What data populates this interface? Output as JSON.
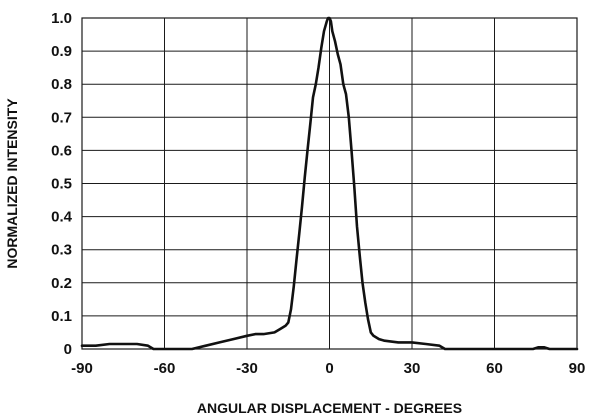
{
  "chart_data": {
    "type": "line",
    "title": "",
    "xlabel": "ANGULAR DISPLACEMENT - DEGREES",
    "ylabel": "NORMALIZED INTENSITY",
    "xlim": [
      -90,
      90
    ],
    "ylim": [
      0,
      1.0
    ],
    "grid": true,
    "x_ticks": [
      -90,
      -60,
      -30,
      0,
      30,
      60,
      90
    ],
    "y_ticks": [
      0,
      0.1,
      0.2,
      0.3,
      0.4,
      0.5,
      0.6,
      0.7,
      0.8,
      0.9,
      1.0
    ],
    "x_tick_labels": [
      "-90",
      "-60",
      "-30",
      "0",
      "30",
      "60",
      "90"
    ],
    "y_tick_labels": [
      "0",
      "0.1",
      "0.2",
      "0.3",
      "0.4",
      "0.5",
      "0.6",
      "0.7",
      "0.8",
      "0.9",
      "1.0"
    ],
    "series": [
      {
        "x": [
          -90,
          -85,
          -80,
          -75,
          -70,
          -66,
          -64,
          -60,
          -55,
          -50,
          -45,
          -40,
          -35,
          -30,
          -27,
          -24,
          -20,
          -18,
          -16,
          -15,
          -14,
          -13,
          -12,
          -11,
          -10,
          -9,
          -8,
          -7,
          -6,
          -5,
          -4,
          -3,
          -2,
          -1,
          -0.5,
          0,
          0.5,
          1,
          2,
          3,
          4,
          5,
          6,
          7,
          8,
          9,
          10,
          11,
          12,
          13,
          14,
          15,
          16,
          18,
          20,
          25,
          30,
          35,
          40,
          42,
          45,
          50,
          55,
          60,
          65,
          70,
          74,
          76,
          78,
          80,
          85,
          90
        ],
        "y": [
          0.01,
          0.01,
          0.015,
          0.015,
          0.015,
          0.01,
          0.0,
          0.0,
          0.0,
          0.0,
          0.01,
          0.02,
          0.03,
          0.04,
          0.045,
          0.045,
          0.05,
          0.06,
          0.07,
          0.08,
          0.12,
          0.19,
          0.27,
          0.35,
          0.43,
          0.52,
          0.6,
          0.68,
          0.76,
          0.8,
          0.85,
          0.91,
          0.96,
          0.99,
          1.0,
          1.0,
          0.99,
          0.96,
          0.93,
          0.89,
          0.86,
          0.8,
          0.77,
          0.7,
          0.6,
          0.49,
          0.37,
          0.28,
          0.2,
          0.14,
          0.09,
          0.05,
          0.04,
          0.03,
          0.025,
          0.02,
          0.02,
          0.015,
          0.01,
          0.0,
          0.0,
          0.0,
          0.0,
          0.0,
          0.0,
          0.0,
          0.0,
          0.005,
          0.005,
          0.0,
          0.0,
          0.0
        ]
      }
    ]
  }
}
